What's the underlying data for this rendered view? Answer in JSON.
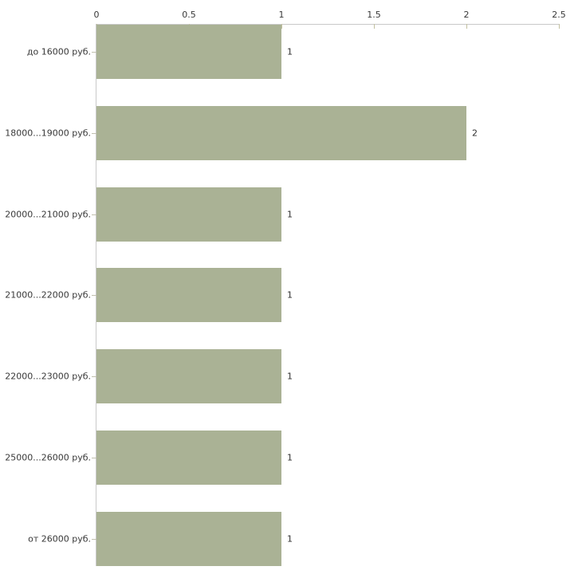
{
  "chart_data": {
    "type": "bar",
    "orientation": "horizontal",
    "title": "",
    "xlabel": "",
    "ylabel": "",
    "categories": [
      "до 16000 руб.",
      "18000...19000 руб.",
      "20000...21000 руб.",
      "21000...22000 руб.",
      "22000...23000 руб.",
      "25000...26000 руб.",
      "от 26000 руб."
    ],
    "values": [
      1,
      2,
      1,
      1,
      1,
      1,
      1
    ],
    "value_labels": [
      "1",
      "2",
      "1",
      "1",
      "1",
      "1",
      "1"
    ],
    "xlim": [
      0,
      2.5
    ],
    "x_ticks": [
      0,
      0.5,
      1,
      1.5,
      2,
      2.5
    ],
    "x_tick_labels": [
      "0",
      "0.5",
      "1",
      "1.5",
      "2",
      "2.5"
    ],
    "x_axis_position": "top",
    "grid": false,
    "legend": null,
    "colors": {
      "bar": "#aab295",
      "axis_line": "#c9c9c9",
      "x_tick": "#c2c0a0",
      "category_tick": "#c0bfae",
      "text": "#383838",
      "background": "#ffffff"
    }
  }
}
